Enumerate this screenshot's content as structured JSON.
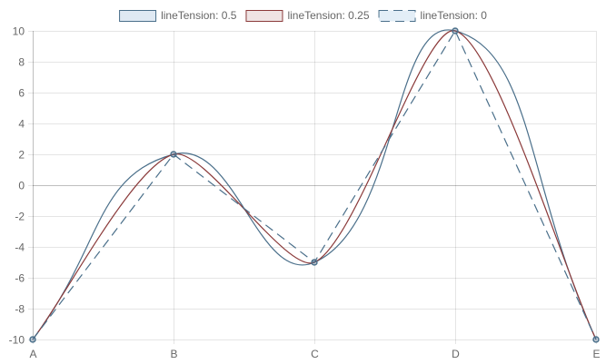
{
  "chart_data": {
    "type": "line",
    "categories": [
      "A",
      "B",
      "C",
      "D",
      "E"
    ],
    "ylim": [
      -10,
      10
    ],
    "y_ticks": [
      10,
      8,
      6,
      4,
      2,
      0,
      -2,
      -4,
      -6,
      -8,
      -10
    ],
    "grid": true,
    "legend_position": "top",
    "series": [
      {
        "name": "lineTension: 0.5",
        "values": [
          -10,
          2,
          -5,
          10,
          -10
        ],
        "tension": 0.5,
        "color": "#4a6f8a",
        "fill": "#dfe9f3",
        "dash": false
      },
      {
        "name": "lineTension: 0.25",
        "values": [
          -10,
          2,
          -5,
          10,
          -10
        ],
        "tension": 0.25,
        "color": "#8b3a3a",
        "fill": "#efe4e4",
        "dash": false
      },
      {
        "name": "lineTension: 0",
        "values": [
          -10,
          2,
          -5,
          10,
          -10
        ],
        "tension": 0,
        "color": "#4a6f8a",
        "fill": "#e3eef7",
        "dash": true
      }
    ]
  }
}
